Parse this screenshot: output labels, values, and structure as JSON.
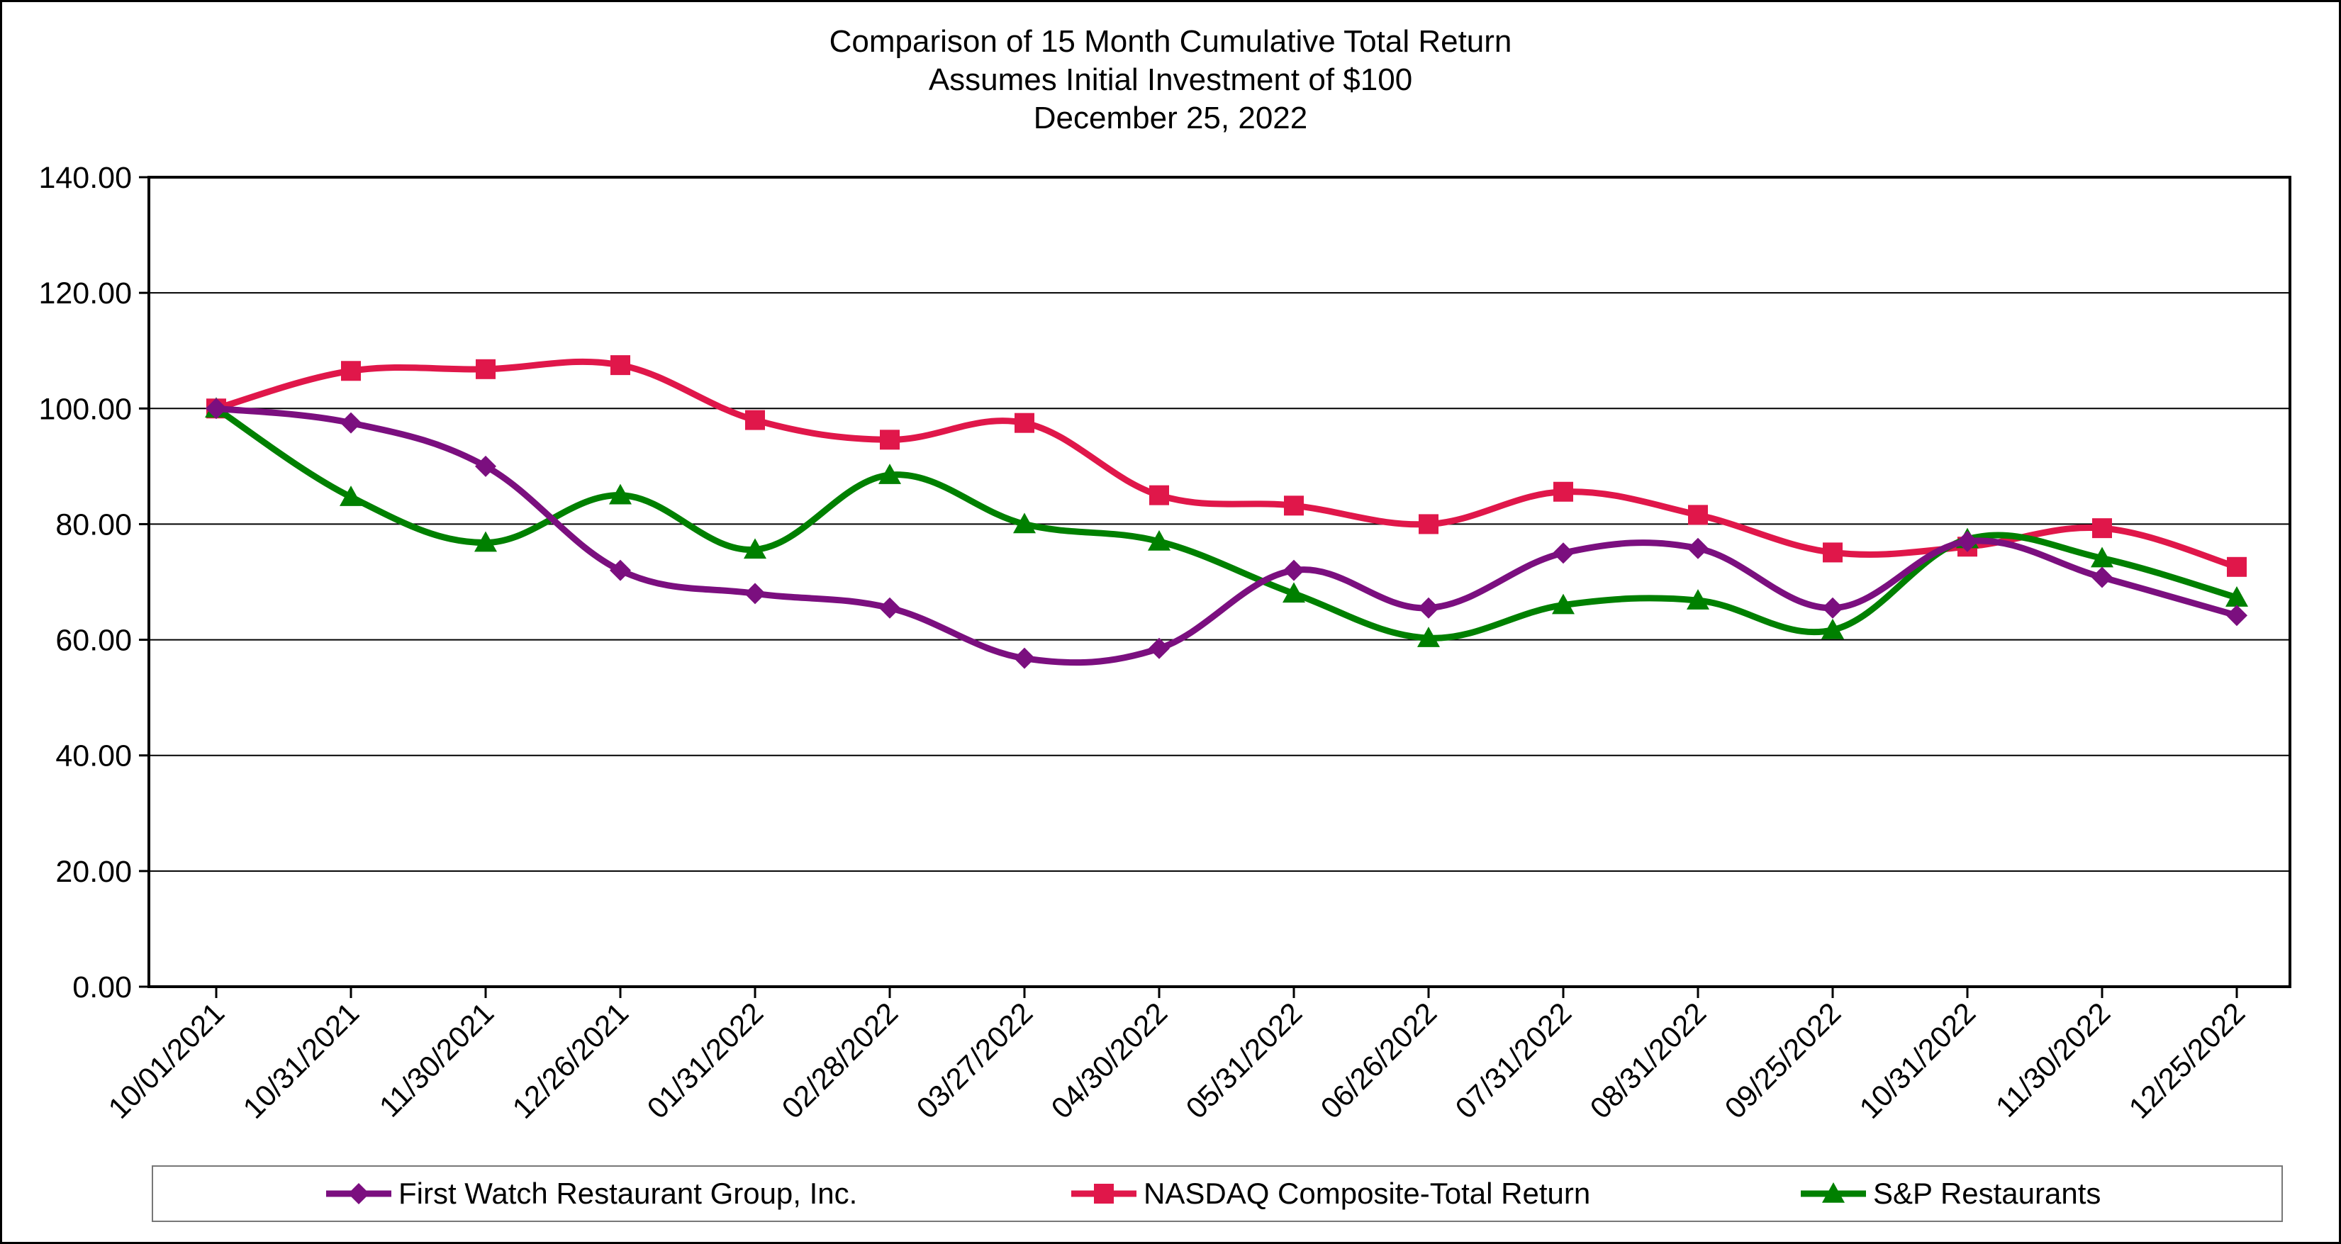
{
  "title": {
    "line1": "Comparison of 15 Month Cumulative Total Return",
    "line2": "Assumes Initial Investment of $100",
    "line3": "December 25, 2022"
  },
  "chart_data": {
    "type": "line",
    "title": "Comparison of 15 Month Cumulative Total Return",
    "subtitle": "Assumes Initial Investment of $100 — December 25, 2022",
    "xlabel": "",
    "ylabel": "",
    "ylim": [
      0,
      140
    ],
    "yticks": [
      "0.00",
      "20.00",
      "40.00",
      "60.00",
      "80.00",
      "100.00",
      "120.00",
      "140.00"
    ],
    "grid": true,
    "legend_position": "bottom",
    "categories": [
      "10/01/2021",
      "10/31/2021",
      "11/30/2021",
      "12/26/2021",
      "01/31/2022",
      "02/28/2022",
      "03/27/2022",
      "04/30/2022",
      "05/31/2022",
      "06/26/2022",
      "07/31/2022",
      "08/31/2022",
      "09/25/2022",
      "10/31/2022",
      "11/30/2022",
      "12/25/2022"
    ],
    "series": [
      {
        "name": "First Watch Restaurant Group, Inc.",
        "color": "#7B0F7F",
        "marker": "diamond",
        "values": [
          100.0,
          97.5,
          90.0,
          72.0,
          68.0,
          65.5,
          56.8,
          58.5,
          72.0,
          65.5,
          75.0,
          75.8,
          65.5,
          77.0,
          70.8,
          64.2
        ]
      },
      {
        "name": "NASDAQ Composite-Total Return",
        "color": "#E0174A",
        "marker": "square",
        "values": [
          100.0,
          106.5,
          106.8,
          107.5,
          98.0,
          94.6,
          97.5,
          85.0,
          83.2,
          80.0,
          85.6,
          81.6,
          75.1,
          76.1,
          79.3,
          72.6
        ]
      },
      {
        "name": "S&P Restaurants",
        "color": "#008000",
        "marker": "triangle",
        "values": [
          100.0,
          84.7,
          76.8,
          85.0,
          75.6,
          88.5,
          80.0,
          77.0,
          68.0,
          60.3,
          66.0,
          66.8,
          61.7,
          77.4,
          74.1,
          67.3
        ]
      }
    ]
  }
}
